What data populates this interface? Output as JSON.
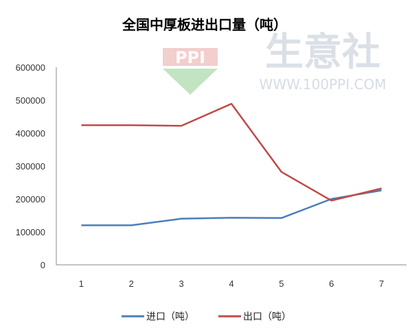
{
  "watermark": {
    "logo_text": "PPI",
    "brand": "生意社",
    "url": "WWW.100PPI.COM",
    "colors": {
      "red": "#d9534f",
      "green": "#5cb85c",
      "text": "#cfd6e0"
    }
  },
  "chart_data": {
    "type": "line",
    "title": "全国中厚板进出口量（吨）",
    "xlabel": "",
    "ylabel": "",
    "x": [
      "1",
      "2",
      "3",
      "4",
      "5",
      "6",
      "7"
    ],
    "ylim": [
      0,
      600000
    ],
    "yticks": [
      "0",
      "100000",
      "200000",
      "300000",
      "400000",
      "500000",
      "600000"
    ],
    "grid": false,
    "legend_position": "bottom",
    "series": [
      {
        "name": "进口（吨）",
        "color": "#4a7ebb",
        "values": [
          120000,
          120000,
          140000,
          143000,
          142000,
          200000,
          226000
        ]
      },
      {
        "name": "出口（吨）",
        "color": "#be4b48",
        "values": [
          424000,
          424000,
          422000,
          489000,
          282000,
          195000,
          232000
        ]
      }
    ]
  }
}
